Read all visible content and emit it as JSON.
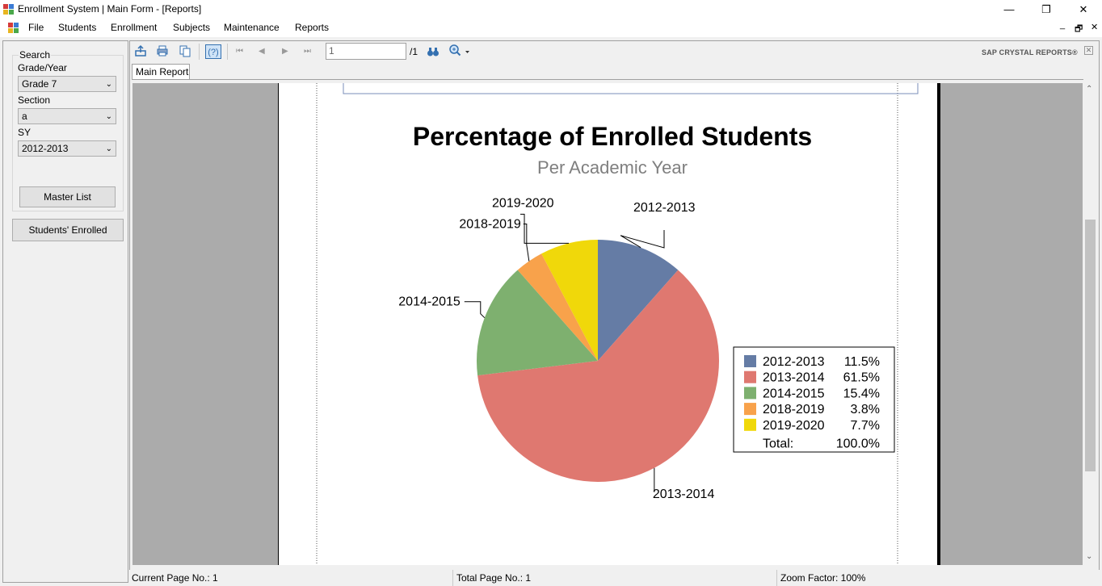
{
  "window": {
    "title": "Enrollment System | Main Form - [Reports]",
    "minimize": "—",
    "restore": "❐",
    "close": "✕"
  },
  "menu": {
    "items": [
      "File",
      "Students",
      "Enrollment",
      "Subjects",
      "Maintenance",
      "Reports"
    ],
    "mdi_min": "_",
    "mdi_restore": "🗗",
    "mdi_close": "✕"
  },
  "search": {
    "title": "Search",
    "grade_label": "Grade/Year",
    "grade_value": "Grade 7",
    "section_label": "Section",
    "section_value": "a",
    "sy_label": "SY",
    "sy_value": "2012-2013",
    "master_list": "Master List",
    "students_enrolled": "Students' Enrolled"
  },
  "toolbar": {
    "page_value": "1",
    "page_total": "/1",
    "brand": "SAP CRYSTAL REPORTS®",
    "tab": "Main Report"
  },
  "status": {
    "current_page": "Current Page No.: 1",
    "total_page": "Total Page No.: 1",
    "zoom": "Zoom Factor: 100%"
  },
  "chart_data": {
    "type": "pie",
    "title": "Percentage of Enrolled Students",
    "subtitle": "Per Academic Year",
    "categories": [
      "2012-2013",
      "2013-2014",
      "2014-2015",
      "2018-2019",
      "2019-2020"
    ],
    "values": [
      11.5,
      61.5,
      15.4,
      3.8,
      7.7
    ],
    "percent_labels": [
      "11.5%",
      "61.5%",
      "15.4%",
      "3.8%",
      "7.7%"
    ],
    "colors": [
      "#657ca5",
      "#df7870",
      "#7eb06f",
      "#f8a24b",
      "#f0d80a"
    ],
    "total_label": "Total:",
    "total_value": "100.0%",
    "legend_position": "right"
  }
}
